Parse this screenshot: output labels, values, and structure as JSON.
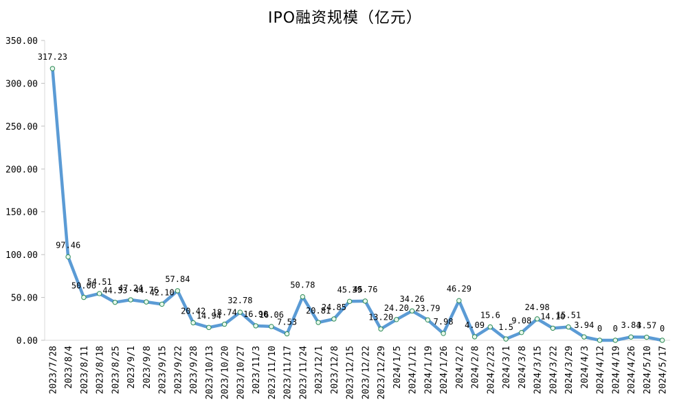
{
  "chart_data": {
    "type": "line",
    "title": "IPO融资规模（亿元）",
    "xlabel": "",
    "ylabel": "",
    "ylim": [
      0,
      350
    ],
    "yticks": [
      "0.00",
      "50.00",
      "100.00",
      "150.00",
      "200.00",
      "250.00",
      "300.00",
      "350.00"
    ],
    "grid": false,
    "legend": "none",
    "colors": {
      "line": "#5b9bd5",
      "marker_fill": "#e8f7ec",
      "marker_stroke": "#2e8b57"
    },
    "categories": [
      "2023/7/28",
      "2023/8/4",
      "2023/8/11",
      "2023/8/18",
      "2023/8/25",
      "2023/9/1",
      "2023/9/8",
      "2023/9/15",
      "2023/9/22",
      "2023/9/28",
      "2023/10/13",
      "2023/10/20",
      "2023/10/27",
      "2023/11/3",
      "2023/11/10",
      "2023/11/17",
      "2023/11/24",
      "2023/12/1",
      "2023/12/8",
      "2023/12/15",
      "2023/12/22",
      "2023/12/29",
      "2024/1/5",
      "2024/1/12",
      "2024/1/19",
      "2024/1/26",
      "2024/2/2",
      "2024/2/8",
      "2024/2/23",
      "2024/3/1",
      "2024/3/8",
      "2024/3/15",
      "2024/3/22",
      "2024/3/29",
      "2024/4/3",
      "2024/4/12",
      "2024/4/19",
      "2024/4/26",
      "2024/5/10",
      "2024/5/17"
    ],
    "values": [
      317.23,
      97.46,
      50.06,
      54.51,
      44.33,
      47.24,
      44.76,
      42.1,
      57.84,
      20.42,
      14.94,
      18.74,
      32.78,
      16.9,
      16.06,
      7.53,
      50.78,
      20.81,
      24.85,
      45.39,
      45.76,
      13.2,
      24.2,
      34.26,
      23.79,
      7.98,
      46.29,
      4.09,
      15.6,
      1.5,
      9.08,
      24.98,
      14.1,
      15.51,
      3.94,
      0,
      0,
      3.84,
      3.57,
      0
    ],
    "labels": [
      "317.23",
      "97.46",
      "50.06",
      "54.51",
      "44.33",
      "47.24",
      "44.76",
      "42.10",
      "57.84",
      "20.42",
      "14.94",
      "18.74",
      "32.78",
      "16.90",
      "16.06",
      "7.53",
      "50.78",
      "20.81",
      "24.85",
      "45.39",
      "45.76",
      "13.20",
      "24.20",
      "34.26",
      "23.79",
      "7.98",
      "46.29",
      "4.09",
      "15.6",
      "1.5",
      "9.08",
      "24.98",
      "14.10",
      "15.51",
      "3.94",
      "0",
      "0",
      "3.84",
      "3.57",
      "0"
    ]
  }
}
